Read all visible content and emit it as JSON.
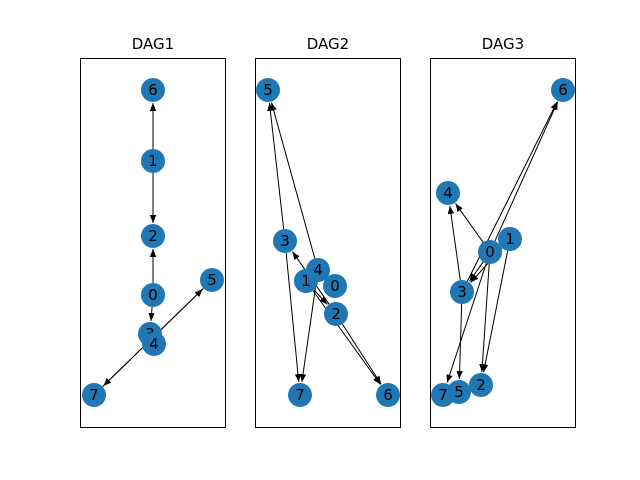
{
  "node_color": "#1f77b4",
  "edge_color": "#000000",
  "frame_color": "#000000",
  "panels": [
    {
      "title": "DAG1",
      "nodes": [
        "6",
        "1",
        "2",
        "0",
        "3",
        "4",
        "5",
        "7"
      ],
      "edges": [
        [
          "1",
          "6"
        ],
        [
          "1",
          "2"
        ],
        [
          "0",
          "2"
        ],
        [
          "0",
          "3"
        ],
        [
          "7",
          "5"
        ],
        [
          "5",
          "7"
        ]
      ]
    },
    {
      "title": "DAG2",
      "nodes": [
        "5",
        "3",
        "4",
        "1",
        "0",
        "2",
        "7",
        "6"
      ],
      "edges": [
        [
          "3",
          "5"
        ],
        [
          "4",
          "5"
        ],
        [
          "3",
          "7"
        ],
        [
          "4",
          "7"
        ],
        [
          "2",
          "3"
        ],
        [
          "1",
          "2"
        ],
        [
          "2",
          "6"
        ],
        [
          "1",
          "6"
        ]
      ]
    },
    {
      "title": "DAG3",
      "nodes": [
        "6",
        "4",
        "0",
        "1",
        "3",
        "2",
        "7",
        "5"
      ],
      "edges": [
        [
          "0",
          "4"
        ],
        [
          "0",
          "3"
        ],
        [
          "1",
          "3"
        ],
        [
          "0",
          "6"
        ],
        [
          "3",
          "6"
        ],
        [
          "0",
          "2"
        ],
        [
          "1",
          "2"
        ],
        [
          "0",
          "7"
        ],
        [
          "3",
          "5"
        ],
        [
          "3",
          "4"
        ]
      ]
    }
  ]
}
